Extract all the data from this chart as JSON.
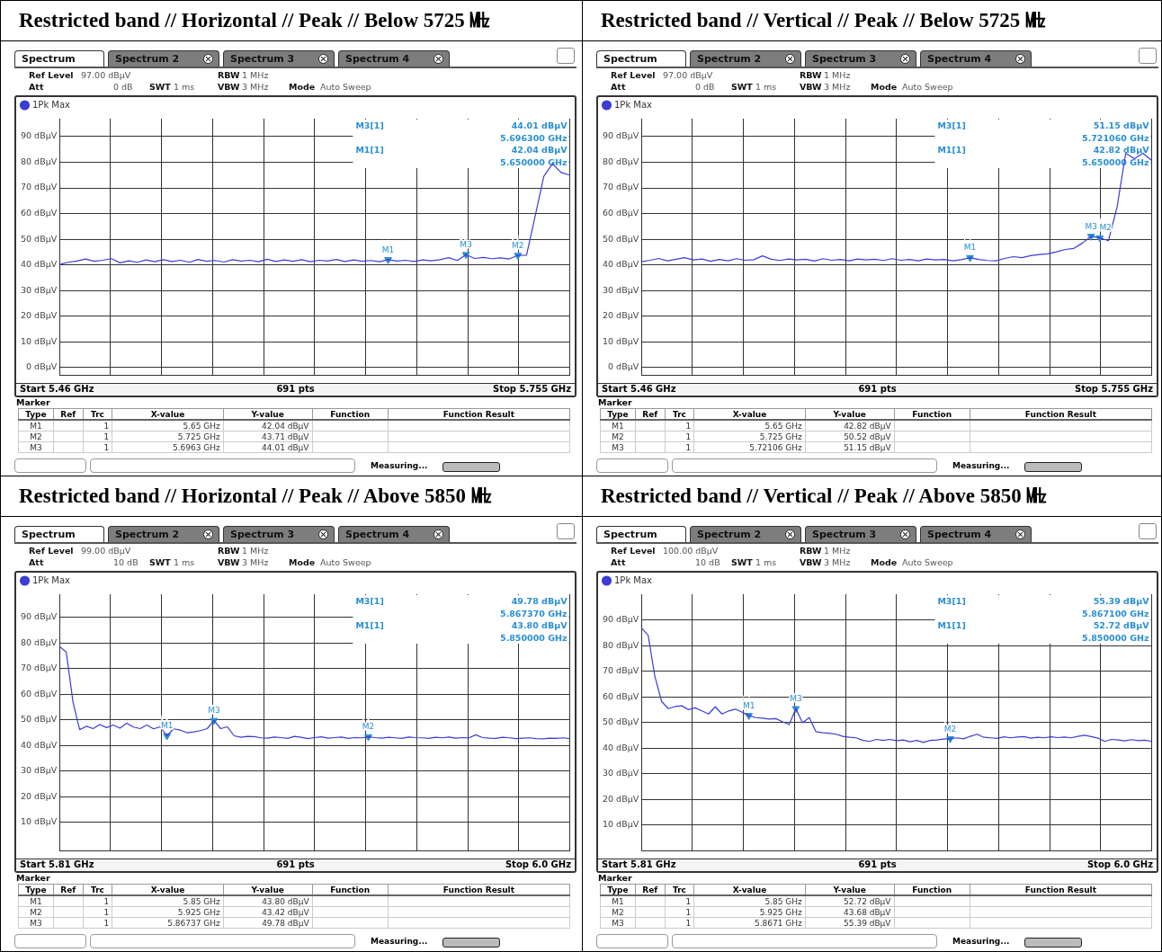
{
  "chart_data": [
    {
      "type": "line",
      "title": "Restricted band // Horizontal // Peak // Below 5725 ㎒",
      "categories": [
        null,
        null,
        null,
        null,
        null,
        null,
        null,
        null,
        null,
        null,
        null,
        null,
        null,
        null,
        null,
        null,
        null,
        null,
        null,
        null,
        null,
        null,
        null,
        null,
        null,
        null,
        null,
        null,
        null,
        null,
        null,
        null,
        null,
        null,
        null,
        null,
        null,
        null,
        null,
        null,
        null,
        null,
        null,
        null,
        null,
        null,
        null,
        null,
        null,
        null,
        null,
        null,
        null,
        null,
        null,
        null,
        null,
        null,
        null,
        null
      ],
      "series": [
        {
          "name": "1Pk Max",
          "color": "#3c3cd6",
          "values": [
            40.2,
            41.0,
            41.5,
            42.3,
            41.4,
            41.8,
            42.4,
            40.8,
            41.6,
            41.0,
            41.9,
            41.2,
            42.0,
            41.3,
            41.8,
            41.0,
            42.1,
            41.4,
            41.7,
            41.1,
            42.0,
            41.5,
            41.8,
            41.2,
            42.2,
            41.3,
            41.9,
            41.4,
            42.0,
            41.2,
            41.8,
            41.5,
            42.1,
            41.3,
            41.9,
            41.4,
            41.7,
            41.2,
            42.04,
            41.5,
            41.8,
            41.3,
            41.9,
            41.6,
            42.0,
            42.8,
            41.7,
            44.01,
            42.5,
            42.9,
            42.4,
            42.7,
            42.3,
            43.71,
            43.8,
            59,
            74.5,
            79.4,
            76,
            75
          ]
        },
        {
          "type": "scatter",
          "marker": "triangle",
          "color": "#2a8fd4",
          "values": [
            null,
            null,
            null,
            null,
            null,
            null,
            null,
            null,
            null,
            null,
            null,
            null,
            null,
            null,
            null,
            null,
            null,
            null,
            null,
            null,
            null,
            null,
            null,
            null,
            null,
            null,
            null,
            null,
            null,
            null,
            null,
            null,
            null,
            null,
            null,
            null,
            null,
            null,
            42.04,
            null,
            null,
            null,
            null,
            null,
            null,
            null,
            null,
            44.01,
            null,
            null,
            null,
            null,
            null,
            43.71,
            null,
            null,
            null,
            null,
            null,
            null
          ],
          "value_labels": [
            null,
            null,
            null,
            null,
            null,
            null,
            null,
            null,
            null,
            null,
            null,
            null,
            null,
            null,
            null,
            null,
            null,
            null,
            null,
            null,
            null,
            null,
            null,
            null,
            null,
            null,
            null,
            null,
            null,
            null,
            null,
            null,
            null,
            null,
            null,
            null,
            null,
            null,
            "M1",
            null,
            null,
            null,
            null,
            null,
            null,
            null,
            null,
            "M3",
            null,
            null,
            null,
            null,
            null,
            "M2",
            null,
            null,
            null,
            null,
            null,
            null
          ]
        }
      ],
      "ylim": [
        -3,
        97
      ],
      "yticks": [
        {
          "value": 0,
          "label": "0 dBµV"
        },
        {
          "value": 10,
          "label": "10 dBµV"
        },
        {
          "value": 20,
          "label": "20 dBµV"
        },
        {
          "value": 30,
          "label": "30 dBµV"
        },
        {
          "value": 40,
          "label": "40 dBµV"
        },
        {
          "value": 50,
          "label": "50 dBµV"
        },
        {
          "value": 60,
          "label": "60 dBµV"
        },
        {
          "value": 70,
          "label": "70 dBµV"
        },
        {
          "value": 80,
          "label": "80 dBµV"
        },
        {
          "value": 90,
          "label": "90 dBµV"
        }
      ],
      "tick_labels": "y",
      "grid": true,
      "legend": "top left",
      "annotations": [
        "Spectrum",
        "Spectrum 2",
        "Spectrum 3",
        "Spectrum 4",
        "Ref Level",
        "97.00 dBµV",
        "Att",
        "0 dB",
        "SWT",
        "1 ms",
        "RBW",
        "1 MHz",
        "VBW",
        "3 MHz",
        "Mode",
        "Auto Sweep",
        "M3[1]",
        "44.01 dBµV",
        "5.696300 GHz",
        "M1[1]",
        "42.04 dBµV",
        "5.650000 GHz",
        "Start 5.46 GHz",
        "691 pts",
        "Stop 5.755 GHz",
        "Marker",
        "Type",
        "Ref",
        "Trc",
        "X-value",
        "Y-value",
        "Function",
        "Function Result",
        "M1",
        "1",
        "5.65 GHz",
        "42.04 dBµV",
        "M2",
        "1",
        "5.725 GHz",
        "43.71 dBµV",
        "M3",
        "1",
        "5.6963 GHz",
        "44.01 dBµV",
        "Measuring..."
      ]
    },
    {
      "type": "line",
      "title": "Restricted band // Vertical // Peak // Below 5725 ㎒",
      "categories": [
        null,
        null,
        null,
        null,
        null,
        null,
        null,
        null,
        null,
        null,
        null,
        null,
        null,
        null,
        null,
        null,
        null,
        null,
        null,
        null,
        null,
        null,
        null,
        null,
        null,
        null,
        null,
        null,
        null,
        null,
        null,
        null,
        null,
        null,
        null,
        null,
        null,
        null,
        null,
        null,
        null,
        null,
        null,
        null,
        null,
        null,
        null,
        null,
        null,
        null,
        null,
        null,
        null,
        null,
        null,
        null,
        null,
        null,
        null,
        null
      ],
      "series": [
        {
          "name": "1Pk Max",
          "color": "#3c3cd6",
          "values": [
            41.2,
            41.8,
            42.5,
            41.6,
            42.2,
            42.8,
            41.9,
            42.3,
            41.4,
            42.1,
            41.6,
            42.4,
            41.8,
            42.0,
            43.5,
            42.2,
            41.7,
            42.3,
            41.9,
            42.2,
            41.5,
            42.4,
            41.8,
            42.1,
            41.6,
            42.3,
            41.9,
            42.2,
            41.7,
            42.4,
            41.8,
            42.1,
            41.6,
            42.3,
            41.9,
            42.1,
            41.6,
            42.0,
            42.82,
            42.1,
            41.7,
            41.6,
            42.5,
            43.2,
            42.8,
            43.6,
            44.0,
            44.3,
            45.1,
            46.0,
            46.4,
            48.5,
            51.15,
            50.52,
            49.4,
            62.5,
            83.5,
            81.4,
            83.5,
            80.7
          ]
        },
        {
          "type": "scatter",
          "marker": "triangle",
          "color": "#2a8fd4",
          "values": [
            null,
            null,
            null,
            null,
            null,
            null,
            null,
            null,
            null,
            null,
            null,
            null,
            null,
            null,
            null,
            null,
            null,
            null,
            null,
            null,
            null,
            null,
            null,
            null,
            null,
            null,
            null,
            null,
            null,
            null,
            null,
            null,
            null,
            null,
            null,
            null,
            null,
            null,
            42.82,
            null,
            null,
            null,
            null,
            null,
            null,
            null,
            null,
            null,
            null,
            null,
            null,
            null,
            51.15,
            50.52,
            null,
            null,
            null,
            null,
            null,
            null
          ],
          "value_labels": [
            null,
            null,
            null,
            null,
            null,
            null,
            null,
            null,
            null,
            null,
            null,
            null,
            null,
            null,
            null,
            null,
            null,
            null,
            null,
            null,
            null,
            null,
            null,
            null,
            null,
            null,
            null,
            null,
            null,
            null,
            null,
            null,
            null,
            null,
            null,
            null,
            null,
            null,
            "M1",
            null,
            null,
            null,
            null,
            null,
            null,
            null,
            null,
            null,
            null,
            null,
            null,
            null,
            "M3",
            "M2",
            null,
            null,
            null,
            null,
            null,
            null
          ]
        }
      ],
      "ylim": [
        -3,
        97
      ],
      "yticks": [
        {
          "value": 0,
          "label": "0 dBµV"
        },
        {
          "value": 10,
          "label": "10 dBµV"
        },
        {
          "value": 20,
          "label": "20 dBµV"
        },
        {
          "value": 30,
          "label": "30 dBµV"
        },
        {
          "value": 40,
          "label": "40 dBµV"
        },
        {
          "value": 50,
          "label": "50 dBµV"
        },
        {
          "value": 60,
          "label": "60 dBµV"
        },
        {
          "value": 70,
          "label": "70 dBµV"
        },
        {
          "value": 80,
          "label": "80 dBµV"
        },
        {
          "value": 90,
          "label": "90 dBµV"
        }
      ],
      "tick_labels": "y",
      "grid": true,
      "legend": "top left",
      "annotations": [
        "Spectrum",
        "Spectrum 2",
        "Spectrum 3",
        "Spectrum 4",
        "Ref Level",
        "97.00 dBµV",
        "Att",
        "0 dB",
        "SWT",
        "1 ms",
        "RBW",
        "1 MHz",
        "VBW",
        "3 MHz",
        "Mode",
        "Auto Sweep",
        "M3[1]",
        "51.15 dBµV",
        "5.721060 GHz",
        "M1[1]",
        "42.82 dBµV",
        "5.650000 GHz",
        "Start 5.46 GHz",
        "691 pts",
        "Stop 5.755 GHz",
        "Marker",
        "Type",
        "Ref",
        "Trc",
        "X-value",
        "Y-value",
        "Function",
        "Function Result",
        "M1",
        "1",
        "5.65 GHz",
        "42.82 dBµV",
        "M2",
        "1",
        "5.725 GHz",
        "50.52 dBµV",
        "M3",
        "1",
        "5.72106 GHz",
        "51.15 dBµV",
        "Measuring..."
      ]
    },
    {
      "type": "line",
      "title": "Restricted band // Horizontal // Peak // Above 5850 ㎒",
      "categories": [
        null,
        null,
        null,
        null,
        null,
        null,
        null,
        null,
        null,
        null,
        null,
        null,
        null,
        null,
        null,
        null,
        null,
        null,
        null,
        null,
        null,
        null,
        null,
        null,
        null,
        null,
        null,
        null,
        null,
        null,
        null,
        null,
        null,
        null,
        null,
        null,
        null,
        null,
        null,
        null,
        null,
        null,
        null,
        null,
        null,
        null,
        null,
        null,
        null,
        null,
        null,
        null,
        null,
        null,
        null,
        null,
        null,
        null,
        null,
        null,
        null,
        null,
        null,
        null,
        null,
        null,
        null,
        null,
        null,
        null,
        null,
        null,
        null,
        null,
        null,
        null,
        null
      ],
      "series": [
        {
          "name": "1Pk Max",
          "color": "#3c3cd6",
          "values": [
            78.6,
            76.5,
            57,
            46.2,
            47.5,
            46.6,
            48.2,
            47.0,
            48,
            46.8,
            48.7,
            47.2,
            46.6,
            48,
            46.5,
            47.3,
            43.8,
            46.5,
            46,
            45.0,
            45.3,
            45.8,
            46.6,
            49.78,
            46.6,
            47.3,
            43.8,
            43.2,
            43.6,
            43.5,
            43.0,
            42.9,
            43.3,
            43.1,
            42.8,
            43.6,
            43.2,
            42.7,
            43.1,
            43.4,
            42.9,
            43.1,
            43.3,
            42.8,
            43.1,
            43.0,
            43.42,
            43.1,
            42.9,
            43.2,
            43.0,
            42.8,
            43.3,
            43.1,
            43.0,
            42.8,
            43.2,
            43.0,
            43.3,
            42.9,
            43.1,
            43.0,
            44.2,
            43.1,
            42.9,
            42.8,
            43.2,
            43.0,
            42.7,
            42.9,
            43.0,
            42.7,
            42.6,
            42.9,
            42.8,
            43.0,
            42.7
          ]
        },
        {
          "type": "scatter",
          "marker": "triangle",
          "color": "#2a8fd4",
          "values": [
            null,
            null,
            null,
            null,
            null,
            null,
            null,
            null,
            null,
            null,
            null,
            null,
            null,
            null,
            null,
            null,
            43.8,
            null,
            null,
            null,
            null,
            null,
            null,
            49.78,
            null,
            null,
            null,
            null,
            null,
            null,
            null,
            null,
            null,
            null,
            null,
            null,
            null,
            null,
            null,
            null,
            null,
            null,
            null,
            null,
            null,
            null,
            43.42,
            null,
            null,
            null,
            null,
            null,
            null,
            null,
            null,
            null,
            null,
            null,
            null,
            null,
            null,
            null,
            null,
            null,
            null,
            null,
            null,
            null,
            null,
            null,
            null,
            null,
            null,
            null,
            null,
            null,
            null
          ],
          "value_labels": [
            null,
            null,
            null,
            null,
            null,
            null,
            null,
            null,
            null,
            null,
            null,
            null,
            null,
            null,
            null,
            null,
            "M1",
            null,
            null,
            null,
            null,
            null,
            null,
            "M3",
            null,
            null,
            null,
            null,
            null,
            null,
            null,
            null,
            null,
            null,
            null,
            null,
            null,
            null,
            null,
            null,
            null,
            null,
            null,
            null,
            null,
            null,
            "M2",
            null,
            null,
            null,
            null,
            null,
            null,
            null,
            null,
            null,
            null,
            null,
            null,
            null,
            null,
            null,
            null,
            null,
            null,
            null,
            null,
            null,
            null,
            null,
            null,
            null,
            null,
            null,
            null,
            null,
            null
          ]
        }
      ],
      "ylim": [
        -1,
        99
      ],
      "yticks": [
        {
          "value": 10,
          "label": "10 dBµV"
        },
        {
          "value": 20,
          "label": "20 dBµV"
        },
        {
          "value": 30,
          "label": "30 dBµV"
        },
        {
          "value": 40,
          "label": "40 dBµV"
        },
        {
          "value": 50,
          "label": "50 dBµV"
        },
        {
          "value": 60,
          "label": "60 dBµV"
        },
        {
          "value": 70,
          "label": "70 dBµV"
        },
        {
          "value": 80,
          "label": "80 dBµV"
        },
        {
          "value": 90,
          "label": "90 dBµV"
        }
      ],
      "tick_labels": "y",
      "grid": true,
      "legend": "top left",
      "annotations": [
        "Spectrum",
        "Spectrum 2",
        "Spectrum 3",
        "Spectrum 4",
        "Ref Level",
        "99.00 dBµV",
        "Att",
        "10 dB",
        "SWT",
        "1 ms",
        "RBW",
        "1 MHz",
        "VBW",
        "3 MHz",
        "Mode",
        "Auto Sweep",
        "M3[1]",
        "49.78 dBµV",
        "5.867370 GHz",
        "M1[1]",
        "43.80 dBµV",
        "5.850000 GHz",
        "Start 5.81 GHz",
        "691 pts",
        "Stop 6.0 GHz",
        "Marker",
        "Type",
        "Ref",
        "Trc",
        "X-value",
        "Y-value",
        "Function",
        "Function Result",
        "M1",
        "1",
        "5.85 GHz",
        "43.80 dBµV",
        "M2",
        "1",
        "5.925 GHz",
        "43.42 dBµV",
        "M3",
        "1",
        "5.86737 GHz",
        "49.78 dBµV",
        "Measuring..."
      ]
    },
    {
      "type": "line",
      "title": "Restricted band // Vertical // Peak // Above 5850 ㎒",
      "categories": [
        null,
        null,
        null,
        null,
        null,
        null,
        null,
        null,
        null,
        null,
        null,
        null,
        null,
        null,
        null,
        null,
        null,
        null,
        null,
        null,
        null,
        null,
        null,
        null,
        null,
        null,
        null,
        null,
        null,
        null,
        null,
        null,
        null,
        null,
        null,
        null,
        null,
        null,
        null,
        null,
        null,
        null,
        null,
        null,
        null,
        null,
        null,
        null,
        null,
        null,
        null,
        null,
        null,
        null,
        null,
        null,
        null,
        null,
        null,
        null,
        null,
        null,
        null,
        null,
        null,
        null,
        null,
        null,
        null,
        null,
        null,
        null,
        null,
        null,
        null,
        null,
        null
      ],
      "series": [
        {
          "name": "1Pk Max",
          "color": "#3c3cd6",
          "values": [
            86.8,
            84,
            68,
            58.2,
            55.4,
            56.2,
            56.5,
            55.0,
            55.7,
            54.5,
            53.3,
            56.1,
            53.3,
            54.5,
            55.2,
            54.0,
            52.72,
            51.9,
            51.7,
            51.3,
            51.5,
            50.3,
            49.2,
            55.39,
            49.9,
            51.9,
            46.4,
            46.0,
            45.8,
            45.4,
            44.6,
            44.2,
            44.0,
            43.0,
            42.6,
            43.4,
            43.0,
            43.4,
            42.9,
            43.2,
            42.5,
            43.0,
            42.2,
            43.0,
            43.2,
            43.5,
            43.68,
            44.0,
            43.6,
            44.6,
            45.4,
            44.2,
            44.0,
            43.8,
            44.4,
            44.0,
            44.3,
            44.5,
            43.9,
            44.2,
            44.0,
            44.4,
            44.1,
            44.3,
            44.0,
            44.6,
            45.0,
            44.5,
            43.9,
            42.6,
            43.4,
            43.2,
            42.8,
            43.3,
            42.9,
            43.1,
            42.6
          ]
        },
        {
          "type": "scatter",
          "marker": "triangle",
          "color": "#2a8fd4",
          "values": [
            null,
            null,
            null,
            null,
            null,
            null,
            null,
            null,
            null,
            null,
            null,
            null,
            null,
            null,
            null,
            null,
            52.72,
            null,
            null,
            null,
            null,
            null,
            null,
            55.39,
            null,
            null,
            null,
            null,
            null,
            null,
            null,
            null,
            null,
            null,
            null,
            null,
            null,
            null,
            null,
            null,
            null,
            null,
            null,
            null,
            null,
            null,
            43.68,
            null,
            null,
            null,
            null,
            null,
            null,
            null,
            null,
            null,
            null,
            null,
            null,
            null,
            null,
            null,
            null,
            null,
            null,
            null,
            null,
            null,
            null,
            null,
            null,
            null,
            null,
            null,
            null,
            null,
            null
          ],
          "value_labels": [
            null,
            null,
            null,
            null,
            null,
            null,
            null,
            null,
            null,
            null,
            null,
            null,
            null,
            null,
            null,
            null,
            "M1",
            null,
            null,
            null,
            null,
            null,
            null,
            "M3",
            null,
            null,
            null,
            null,
            null,
            null,
            null,
            null,
            null,
            null,
            null,
            null,
            null,
            null,
            null,
            null,
            null,
            null,
            null,
            null,
            null,
            null,
            "M2",
            null,
            null,
            null,
            null,
            null,
            null,
            null,
            null,
            null,
            null,
            null,
            null,
            null,
            null,
            null,
            null,
            null,
            null,
            null,
            null,
            null,
            null,
            null,
            null,
            null,
            null,
            null,
            null,
            null,
            null
          ]
        }
      ],
      "ylim": [
        0,
        100
      ],
      "yticks": [
        {
          "value": 10,
          "label": "10 dBµV"
        },
        {
          "value": 20,
          "label": "20 dBµV"
        },
        {
          "value": 30,
          "label": "30 dBµV"
        },
        {
          "value": 40,
          "label": "40 dBµV"
        },
        {
          "value": 50,
          "label": "50 dBµV"
        },
        {
          "value": 60,
          "label": "60 dBµV"
        },
        {
          "value": 70,
          "label": "70 dBµV"
        },
        {
          "value": 80,
          "label": "80 dBµV"
        },
        {
          "value": 90,
          "label": "90 dBµV"
        }
      ],
      "tick_labels": "y",
      "grid": true,
      "legend": "top left",
      "annotations": [
        "Spectrum",
        "Spectrum 2",
        "Spectrum 3",
        "Spectrum 4",
        "Ref Level",
        "100.00 dBµV",
        "Att",
        "10 dB",
        "SWT",
        "1 ms",
        "RBW",
        "1 MHz",
        "VBW",
        "3 MHz",
        "Mode",
        "Auto Sweep",
        "M3[1]",
        "55.39 dBµV",
        "5.867100 GHz",
        "M1[1]",
        "52.72 dBµV",
        "5.850000 GHz",
        "Start 5.81 GHz",
        "691 pts",
        "Stop 6.0 GHz",
        "Marker",
        "Type",
        "Ref",
        "Trc",
        "X-value",
        "Y-value",
        "Function",
        "Function Result",
        "M1",
        "1",
        "5.85 GHz",
        "52.72 dBµV",
        "M2",
        "1",
        "5.925 GHz",
        "43.68 dBµV",
        "M3",
        "1",
        "5.8671 GHz",
        "55.39 dBµV",
        "Measuring..."
      ]
    }
  ]
}
